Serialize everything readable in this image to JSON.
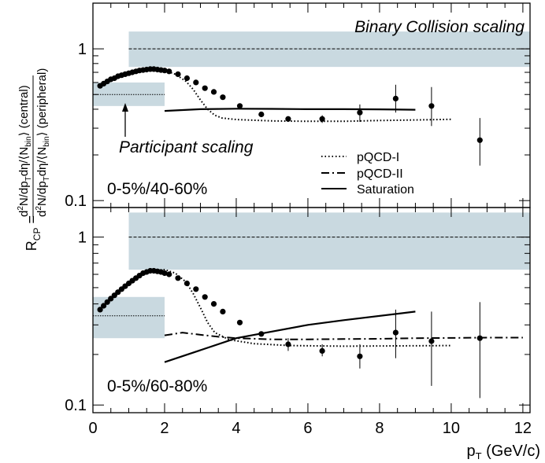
{
  "chart_data": {
    "type": "scatter",
    "xlabel_main": "p",
    "xlabel_sub": "T",
    "xlabel_unit": " (GeV/c)",
    "x_ticks": [
      "0",
      "2",
      "4",
      "6",
      "8",
      "10",
      "12"
    ],
    "xlim": [
      0,
      12.2
    ],
    "ylabel": {
      "r": "R",
      "r_sub": "CP",
      "eq": " =",
      "num_a": "d",
      "num_b": "2",
      "num_c": "N/dp",
      "num_d": "T",
      "num_e": "dη/⟨N",
      "num_f": "bin",
      "num_g": "⟩ (central)",
      "den_a": "d",
      "den_b": "2",
      "den_c": "N/dp",
      "den_d": "T",
      "den_e": "dη/⟨N",
      "den_f": "bin",
      "den_g": "⟩ (peripheral)"
    },
    "y_scale": "log",
    "legend": {
      "placement": "lower-right of top panel",
      "entries": [
        {
          "label": "pQCD-I",
          "style": "dotted"
        },
        {
          "label": "pQCD-II",
          "style": "dash-dot"
        },
        {
          "label": "Saturation",
          "style": "solid"
        }
      ]
    },
    "panels": [
      {
        "id": "top",
        "label": "0-5%/40-60%",
        "ylim": [
          0.09,
          2.0
        ],
        "y_ticks": [
          {
            "v": 0.1,
            "label": "0.1"
          },
          {
            "v": 1,
            "label": "1"
          }
        ],
        "annotations": {
          "binary": "Binary Collision scaling",
          "participant": "Participant scaling"
        },
        "binary_band": {
          "x": [
            1.0,
            12.2
          ],
          "center": 1.0,
          "low": 0.76,
          "high": 1.3
        },
        "participant_band": {
          "x": [
            0.0,
            2.0
          ],
          "center": 0.5,
          "low": 0.42,
          "high": 0.6
        },
        "data": [
          {
            "x": 0.2,
            "y": 0.57
          },
          {
            "x": 0.3,
            "y": 0.59
          },
          {
            "x": 0.4,
            "y": 0.61
          },
          {
            "x": 0.5,
            "y": 0.63
          },
          {
            "x": 0.6,
            "y": 0.64
          },
          {
            "x": 0.7,
            "y": 0.66
          },
          {
            "x": 0.8,
            "y": 0.67
          },
          {
            "x": 0.9,
            "y": 0.68
          },
          {
            "x": 1.0,
            "y": 0.69
          },
          {
            "x": 1.1,
            "y": 0.7
          },
          {
            "x": 1.2,
            "y": 0.71
          },
          {
            "x": 1.3,
            "y": 0.72
          },
          {
            "x": 1.4,
            "y": 0.725
          },
          {
            "x": 1.5,
            "y": 0.73
          },
          {
            "x": 1.6,
            "y": 0.735
          },
          {
            "x": 1.7,
            "y": 0.735
          },
          {
            "x": 1.8,
            "y": 0.73
          },
          {
            "x": 1.9,
            "y": 0.725
          },
          {
            "x": 2.0,
            "y": 0.72
          },
          {
            "x": 2.125,
            "y": 0.71
          },
          {
            "x": 2.375,
            "y": 0.68
          },
          {
            "x": 2.625,
            "y": 0.64
          },
          {
            "x": 2.875,
            "y": 0.6
          },
          {
            "x": 3.125,
            "y": 0.55
          },
          {
            "x": 3.375,
            "y": 0.52
          },
          {
            "x": 3.625,
            "y": 0.48
          },
          {
            "x": 4.1,
            "y": 0.42
          },
          {
            "x": 4.7,
            "y": 0.37
          },
          {
            "x": 5.45,
            "y": 0.345,
            "err": [
              0.33,
              0.36
            ]
          },
          {
            "x": 6.4,
            "y": 0.345,
            "err": [
              0.325,
              0.365
            ]
          },
          {
            "x": 7.45,
            "y": 0.38,
            "err": [
              0.33,
              0.43
            ]
          },
          {
            "x": 8.45,
            "y": 0.47,
            "err": [
              0.38,
              0.58
            ]
          },
          {
            "x": 9.45,
            "y": 0.42,
            "err": [
              0.31,
              0.56
            ]
          },
          {
            "x": 10.8,
            "y": 0.25,
            "err": [
              0.17,
              0.35
            ]
          }
        ],
        "curves": [
          {
            "name": "pQCD-I",
            "style": "dotted",
            "points": [
              [
                2.0,
                0.72
              ],
              [
                2.3,
                0.68
              ],
              [
                2.6,
                0.61
              ],
              [
                2.8,
                0.54
              ],
              [
                3.0,
                0.46
              ],
              [
                3.2,
                0.4
              ],
              [
                3.4,
                0.365
              ],
              [
                3.6,
                0.35
              ],
              [
                4.0,
                0.342
              ],
              [
                5.0,
                0.335
              ],
              [
                6.0,
                0.333
              ],
              [
                7.0,
                0.333
              ],
              [
                8.0,
                0.337
              ],
              [
                9.0,
                0.34
              ],
              [
                10.0,
                0.343
              ]
            ]
          },
          {
            "name": "Saturation",
            "style": "solid",
            "points": [
              [
                2.0,
                0.39
              ],
              [
                3.0,
                0.4
              ],
              [
                4.0,
                0.403
              ],
              [
                5.0,
                0.402
              ],
              [
                6.0,
                0.4
              ],
              [
                7.0,
                0.4
              ],
              [
                8.0,
                0.399
              ],
              [
                9.0,
                0.397
              ]
            ]
          }
        ]
      },
      {
        "id": "bottom",
        "label": "0-5%/60-80%",
        "ylim": [
          0.09,
          1.5
        ],
        "y_ticks": [
          {
            "v": 0.1,
            "label": "0.1"
          },
          {
            "v": 1,
            "label": "1"
          }
        ],
        "binary_band": {
          "x": [
            1.0,
            12.2
          ],
          "center": 1.0,
          "low": 0.64,
          "high": 1.4
        },
        "participant_band": {
          "x": [
            0.0,
            2.0
          ],
          "center": 0.34,
          "low": 0.25,
          "high": 0.44
        },
        "data": [
          {
            "x": 0.2,
            "y": 0.37
          },
          {
            "x": 0.3,
            "y": 0.39
          },
          {
            "x": 0.4,
            "y": 0.41
          },
          {
            "x": 0.5,
            "y": 0.43
          },
          {
            "x": 0.6,
            "y": 0.45
          },
          {
            "x": 0.7,
            "y": 0.47
          },
          {
            "x": 0.8,
            "y": 0.49
          },
          {
            "x": 0.9,
            "y": 0.51
          },
          {
            "x": 1.0,
            "y": 0.53
          },
          {
            "x": 1.1,
            "y": 0.55
          },
          {
            "x": 1.2,
            "y": 0.57
          },
          {
            "x": 1.3,
            "y": 0.59
          },
          {
            "x": 1.4,
            "y": 0.61
          },
          {
            "x": 1.5,
            "y": 0.62
          },
          {
            "x": 1.6,
            "y": 0.63
          },
          {
            "x": 1.7,
            "y": 0.63
          },
          {
            "x": 1.8,
            "y": 0.625
          },
          {
            "x": 1.9,
            "y": 0.62
          },
          {
            "x": 2.0,
            "y": 0.61
          },
          {
            "x": 2.125,
            "y": 0.6
          },
          {
            "x": 2.375,
            "y": 0.57
          },
          {
            "x": 2.625,
            "y": 0.53
          },
          {
            "x": 2.875,
            "y": 0.49
          },
          {
            "x": 3.125,
            "y": 0.44
          },
          {
            "x": 3.375,
            "y": 0.4
          },
          {
            "x": 3.625,
            "y": 0.36
          },
          {
            "x": 4.1,
            "y": 0.31
          },
          {
            "x": 4.7,
            "y": 0.265
          },
          {
            "x": 5.45,
            "y": 0.23,
            "err": [
              0.21,
              0.25
            ]
          },
          {
            "x": 6.4,
            "y": 0.21,
            "err": [
              0.195,
              0.23
            ]
          },
          {
            "x": 7.45,
            "y": 0.195,
            "err": [
              0.165,
              0.23
            ]
          },
          {
            "x": 8.45,
            "y": 0.27,
            "err": [
              0.19,
              0.37
            ]
          },
          {
            "x": 9.45,
            "y": 0.24,
            "err": [
              0.13,
              0.36
            ]
          },
          {
            "x": 10.8,
            "y": 0.25,
            "err": [
              0.11,
              0.41
            ]
          }
        ],
        "curves": [
          {
            "name": "pQCD-I",
            "style": "dotted",
            "points": [
              [
                1.6,
                0.63
              ],
              [
                2.0,
                0.64
              ],
              [
                2.3,
                0.61
              ],
              [
                2.6,
                0.54
              ],
              [
                2.8,
                0.46
              ],
              [
                3.0,
                0.38
              ],
              [
                3.2,
                0.31
              ],
              [
                3.4,
                0.27
              ],
              [
                3.8,
                0.245
              ],
              [
                4.5,
                0.232
              ],
              [
                5.5,
                0.226
              ],
              [
                7.0,
                0.224
              ],
              [
                8.5,
                0.225
              ],
              [
                10.0,
                0.226
              ]
            ]
          },
          {
            "name": "pQCD-II",
            "style": "dash-dot",
            "points": [
              [
                2.0,
                0.26
              ],
              [
                2.5,
                0.27
              ],
              [
                3.0,
                0.262
              ],
              [
                3.5,
                0.255
              ],
              [
                4.0,
                0.25
              ],
              [
                5.0,
                0.246
              ],
              [
                6.0,
                0.246
              ],
              [
                7.0,
                0.247
              ],
              [
                8.0,
                0.248
              ],
              [
                9.0,
                0.25
              ],
              [
                10.0,
                0.251
              ],
              [
                11.0,
                0.252
              ],
              [
                12.0,
                0.252
              ]
            ]
          },
          {
            "name": "Saturation",
            "style": "solid",
            "points": [
              [
                2.0,
                0.18
              ],
              [
                4.0,
                0.25
              ],
              [
                6.0,
                0.3
              ],
              [
                7.0,
                0.32
              ],
              [
                9.0,
                0.36
              ]
            ]
          }
        ]
      }
    ]
  }
}
